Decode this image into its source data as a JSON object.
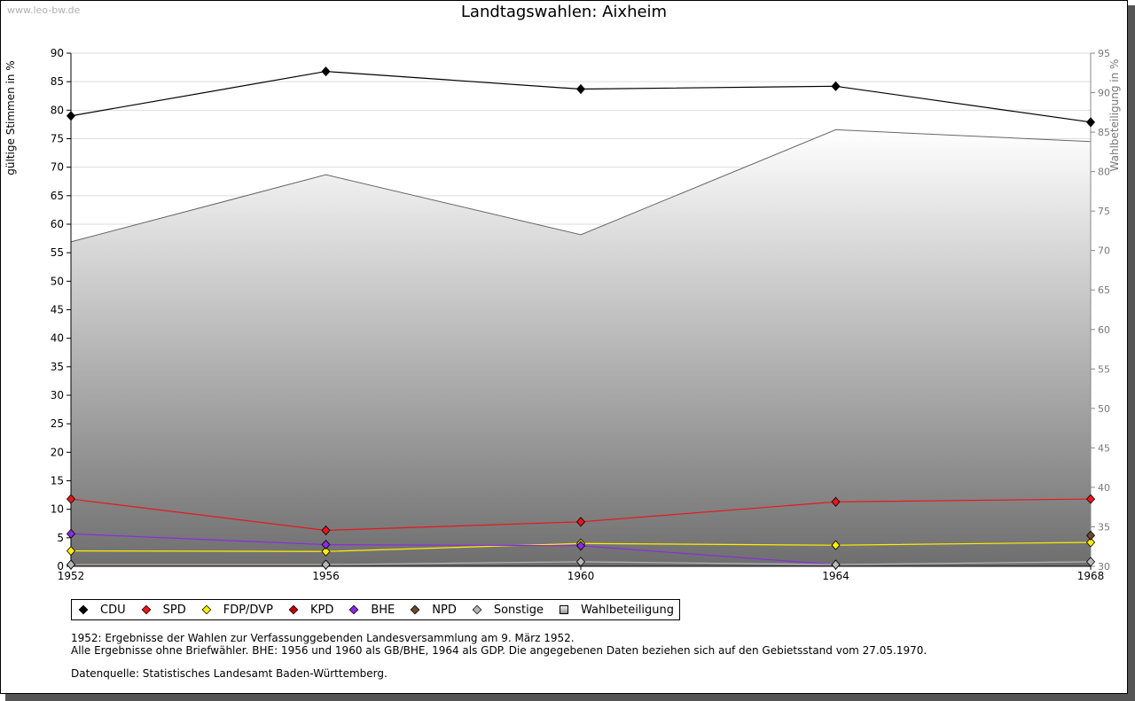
{
  "watermark": "www.leo-bw.de",
  "legend": [
    {
      "label": "CDU",
      "color": "#000000",
      "shape": "diamond"
    },
    {
      "label": "SPD",
      "color": "#e8161b",
      "shape": "diamond"
    },
    {
      "label": "FDP/DVP",
      "color": "#ffee00",
      "shape": "diamond"
    },
    {
      "label": "KPD",
      "color": "#c40000",
      "shape": "diamond"
    },
    {
      "label": "BHE",
      "color": "#8a2be2",
      "shape": "diamond"
    },
    {
      "label": "NPD",
      "color": "#6b4a2b",
      "shape": "diamond"
    },
    {
      "label": "Sonstige",
      "color": "#b8b8b8",
      "shape": "diamond"
    },
    {
      "label": "Wahlbeteiligung",
      "color": "#a0a0a0",
      "shape": "square"
    }
  ],
  "notes": {
    "line1": "1952: Ergebnisse der Wahlen zur Verfassunggebenden Landesversammlung am 9. März 1952.",
    "line2": "Alle Ergebnisse ohne Briefwähler. BHE: 1956 und 1960 als GB/BHE, 1964 als GDP. Die angegebenen Daten beziehen sich auf den Gebietsstand vom 27.05.1970.",
    "source": "Datenquelle: Statistisches Landesamt Baden-Württemberg."
  },
  "chart_data": {
    "type": "line",
    "title": "Landtagswahlen: Aixheim",
    "ylabel": "gültige Stimmen in %",
    "y2label": "Wahlbeteiligung in %",
    "x": [
      "1952",
      "1956",
      "1960",
      "1964",
      "1968"
    ],
    "ylim": [
      0,
      90
    ],
    "y_ticks": [
      0,
      5,
      10,
      15,
      20,
      25,
      30,
      35,
      40,
      45,
      50,
      55,
      60,
      65,
      70,
      75,
      80,
      85,
      90
    ],
    "y2lim": [
      30,
      95
    ],
    "y2_ticks": [
      30,
      35,
      40,
      45,
      50,
      55,
      60,
      65,
      70,
      75,
      80,
      85,
      90,
      95
    ],
    "grid": true,
    "legend_position": "bottom",
    "area_series": {
      "name": "Wahlbeteiligung",
      "axis": "right",
      "values": [
        71.1,
        79.6,
        72.0,
        85.3,
        83.8
      ]
    },
    "series": [
      {
        "name": "CDU",
        "color": "#000000",
        "values": [
          79.0,
          86.8,
          83.7,
          84.2,
          77.9
        ]
      },
      {
        "name": "SPD",
        "color": "#e8161b",
        "values": [
          11.8,
          6.3,
          7.8,
          11.3,
          11.8
        ]
      },
      {
        "name": "FDP/DVP",
        "color": "#ffee00",
        "values": [
          2.7,
          2.6,
          4.0,
          3.7,
          4.2
        ]
      },
      {
        "name": "KPD",
        "color": "#c40000",
        "values": [
          0.3,
          0.3,
          null,
          null,
          null
        ]
      },
      {
        "name": "BHE",
        "color": "#8a2be2",
        "values": [
          5.7,
          3.8,
          3.6,
          0.3,
          null
        ]
      },
      {
        "name": "NPD",
        "color": "#6b4a2b",
        "values": [
          null,
          null,
          null,
          null,
          5.4
        ]
      },
      {
        "name": "Sonstige",
        "color": "#b8b8b8",
        "values": [
          0.3,
          0.3,
          0.8,
          0.3,
          0.8
        ]
      }
    ]
  }
}
